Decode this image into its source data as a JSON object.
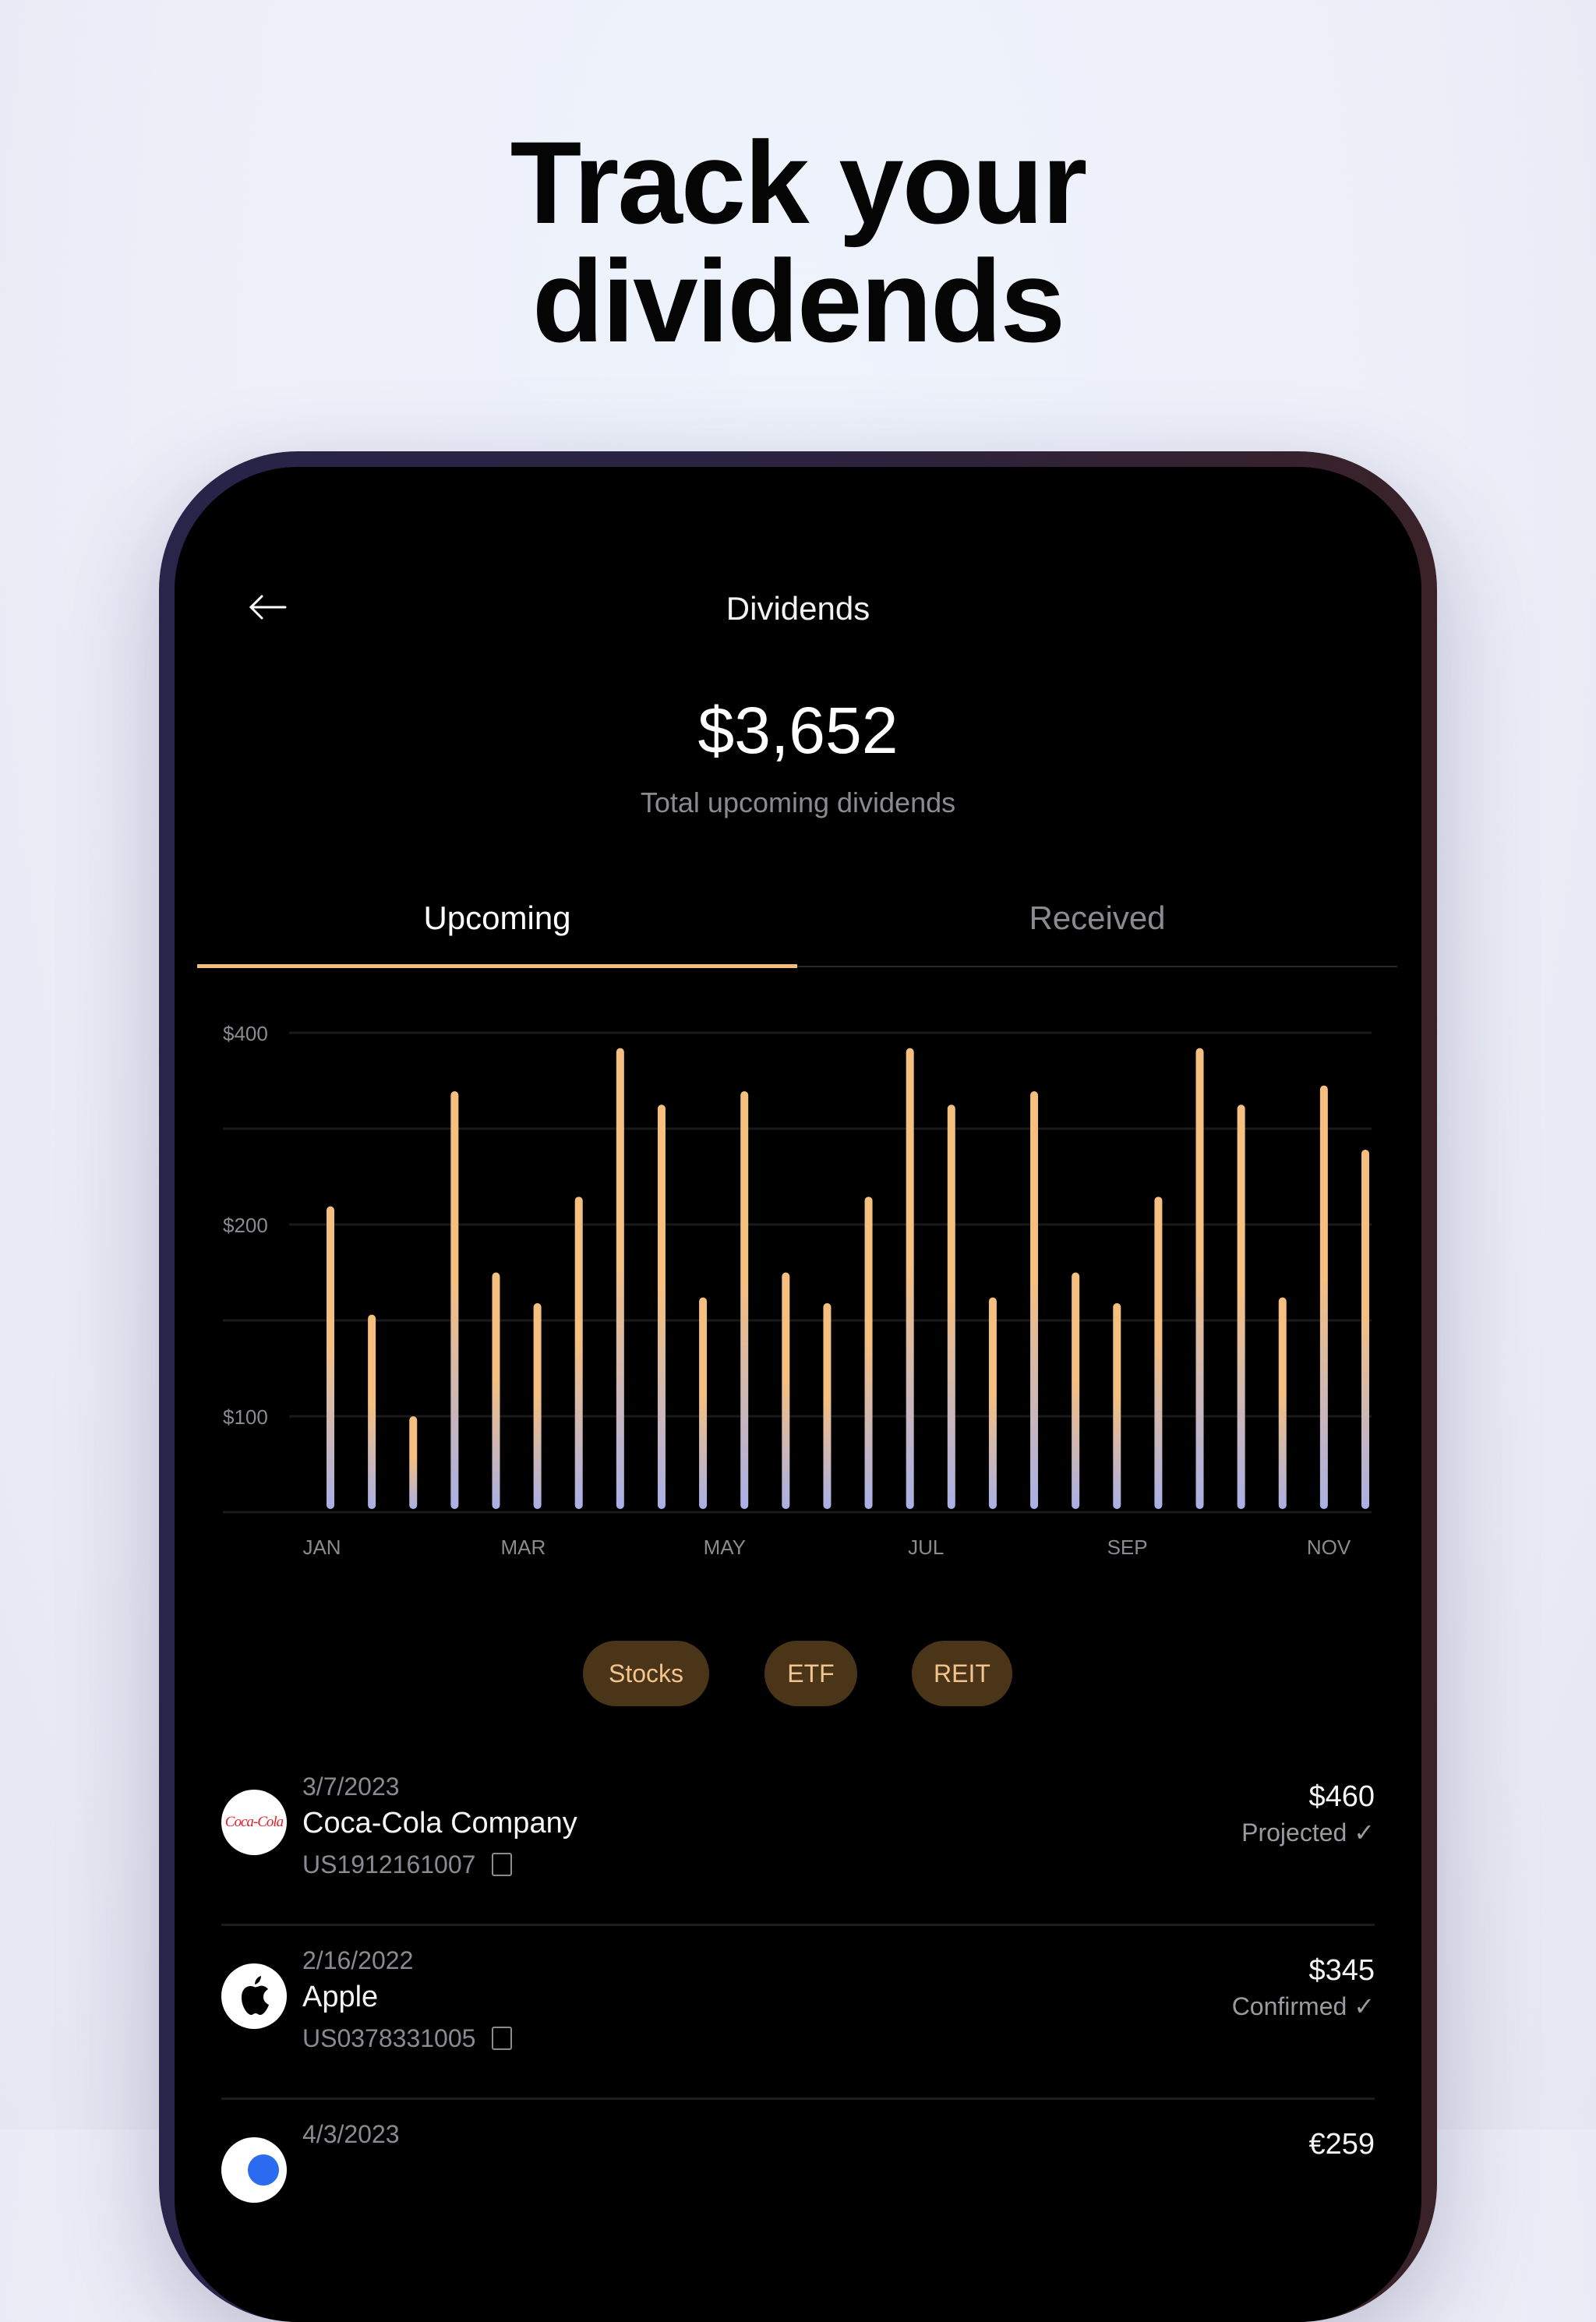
{
  "hero": {
    "line1": "Track your",
    "line2": "dividends"
  },
  "header": {
    "title": "Dividends",
    "back_icon": "arrow-left-icon"
  },
  "summary": {
    "amount": "$3,652",
    "label": "Total upcoming dividends"
  },
  "tabs": [
    {
      "label": "Upcoming",
      "active": true
    },
    {
      "label": "Received",
      "active": false
    }
  ],
  "colors": {
    "accent": "#f5bd7a",
    "bar_top": "#f5bf7f",
    "bar_bottom": "#a9b0e6",
    "pill_bg": "#4a3519",
    "pill_text": "#f3c48d"
  },
  "chart_data": {
    "type": "bar",
    "values": [
      219,
      153,
      100,
      339,
      175,
      159,
      229,
      384,
      325,
      162,
      339,
      175,
      159,
      229,
      384,
      325,
      162,
      339,
      175,
      159,
      229,
      384,
      325,
      162,
      345,
      278
    ],
    "x_tick_labels": [
      "JAN",
      "MAR",
      "MAY",
      "JUL",
      "SEP",
      "NOV"
    ],
    "y_gridlines": [
      0,
      100,
      150,
      200,
      300,
      400
    ],
    "y_tick_labels": [
      {
        "value": 400,
        "label": "$400"
      },
      {
        "value": 200,
        "label": "$200"
      },
      {
        "value": 100,
        "label": "$100"
      }
    ],
    "ylim": [
      0,
      400
    ],
    "grid": true
  },
  "filters": [
    "Stocks",
    "ETF",
    "REIT"
  ],
  "dividends": [
    {
      "date": "3/7/2023",
      "name": "Coca-Cola Company",
      "isin": "US1912161007",
      "amount": "$460",
      "status": "Projected",
      "logo": "coca-cola-logo",
      "logo_text": "Coca-Cola"
    },
    {
      "date": "2/16/2022",
      "name": "Apple",
      "isin": "US0378331005",
      "amount": "$345",
      "status": "Confirmed",
      "logo": "apple-logo"
    },
    {
      "date": "4/3/2023",
      "name": "",
      "isin": "",
      "amount": "€259",
      "status": "",
      "logo": "company-logo"
    }
  ]
}
